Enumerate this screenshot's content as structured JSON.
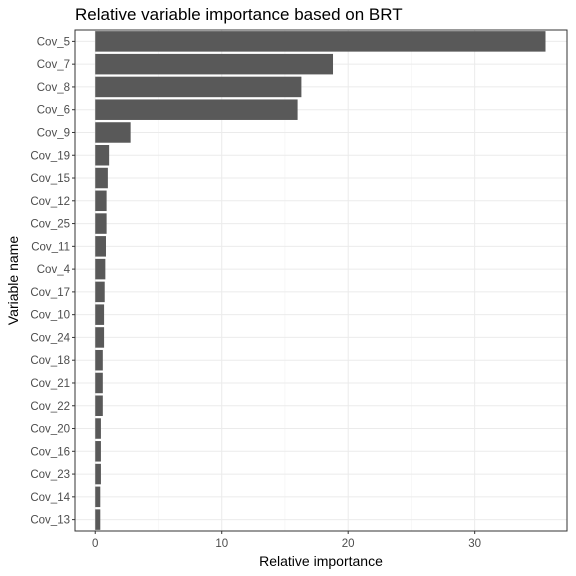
{
  "chart_data": {
    "type": "bar",
    "orientation": "horizontal",
    "title": "Relative variable importance based on BRT",
    "xlabel": "Relative importance",
    "ylabel": "Variable name",
    "categories": [
      "Cov_5",
      "Cov_7",
      "Cov_8",
      "Cov_6",
      "Cov_9",
      "Cov_19",
      "Cov_15",
      "Cov_12",
      "Cov_25",
      "Cov_11",
      "Cov_4",
      "Cov_17",
      "Cov_10",
      "Cov_24",
      "Cov_18",
      "Cov_21",
      "Cov_22",
      "Cov_20",
      "Cov_16",
      "Cov_23",
      "Cov_14",
      "Cov_13"
    ],
    "values": [
      35.6,
      18.8,
      16.3,
      16.0,
      2.8,
      1.1,
      1.0,
      0.9,
      0.9,
      0.85,
      0.8,
      0.75,
      0.7,
      0.7,
      0.6,
      0.6,
      0.6,
      0.45,
      0.45,
      0.45,
      0.4,
      0.4
    ],
    "xlim": [
      -1.6,
      37.3
    ],
    "xticks": [
      0,
      10,
      20,
      30
    ],
    "grid": true,
    "bar_color": "#595959",
    "grid_color": "#ebebeb",
    "theme": "bw"
  }
}
